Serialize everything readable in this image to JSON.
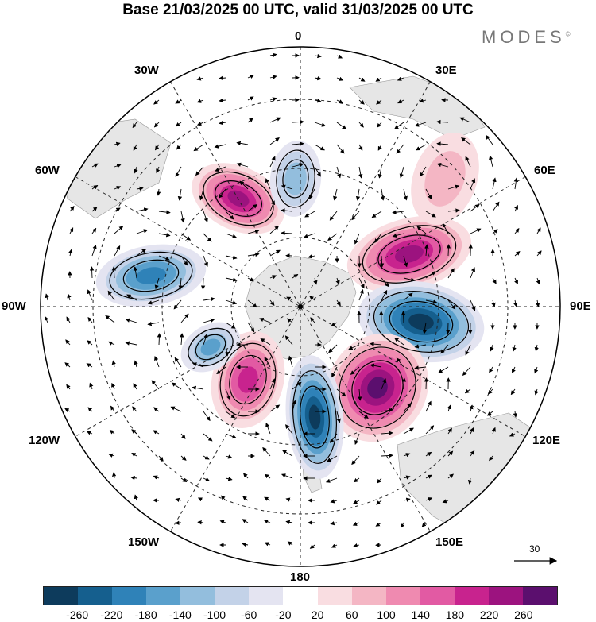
{
  "title": "Base 21/03/2025 00 UTC, valid 31/03/2025 00 UTC",
  "brand": "MODES",
  "brand_mark": "©",
  "longitude_labels": {
    "top": "0",
    "lon_30e": "30E",
    "lon_60e": "60E",
    "lon_90e": "90E",
    "lon_120e": "120E",
    "lon_150e": "150E",
    "bottom": "180",
    "lon_150w": "150W",
    "lon_120w": "120W",
    "lon_90w": "90W",
    "lon_60w": "60W",
    "lon_30w": "30W"
  },
  "reference_vector": "30",
  "colorbar": {
    "colors": [
      "#0d3b5c",
      "#155f8e",
      "#2f82b8",
      "#5aa0cc",
      "#93bedd",
      "#c3d2e8",
      "#e4e4f1",
      "#ffffff",
      "#f9dde1",
      "#f4b6c4",
      "#ef8ab0",
      "#e25aa3",
      "#c8238e",
      "#9c137f",
      "#5b0f6e"
    ],
    "tick_labels": [
      "-260",
      "-220",
      "-180",
      "-140",
      "-100",
      "-60",
      "-20",
      "20",
      "60",
      "100",
      "140",
      "180",
      "220",
      "260"
    ]
  },
  "anomaly_centers": [
    {
      "name": "anomaly-center-1",
      "value": 200
    },
    {
      "name": "anomaly-center-2",
      "value": -180
    },
    {
      "name": "anomaly-center-3",
      "value": 200
    },
    {
      "name": "anomaly-center-4",
      "value": -260
    },
    {
      "name": "anomaly-center-5",
      "value": 240
    },
    {
      "name": "anomaly-center-6",
      "value": -240
    },
    {
      "name": "anomaly-center-7",
      "value": 180
    },
    {
      "name": "anomaly-center-8",
      "value": -140
    },
    {
      "name": "anomaly-center-9",
      "value": -100
    },
    {
      "name": "anomaly-center-10",
      "value": 60
    }
  ]
}
